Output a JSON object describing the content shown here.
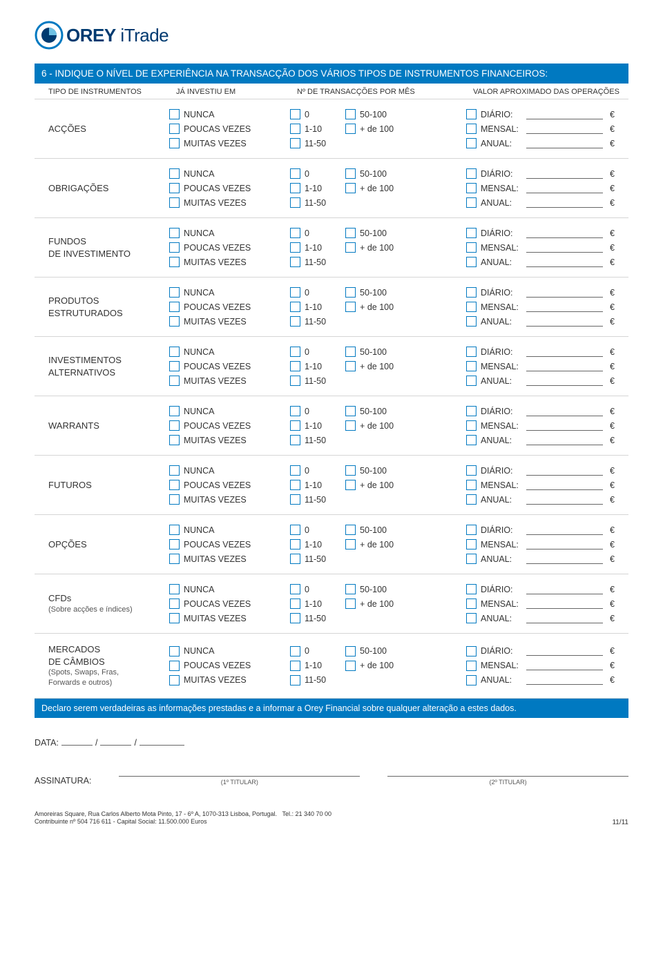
{
  "logo": {
    "brand_bold": "OREY",
    "brand_light": " iTrade"
  },
  "section_title": "6 - INDIQUE O NÍVEL DE EXPERIÊNCIA NA TRANSACÇÃO DOS VÁRIOS TIPOS DE INSTRUMENTOS FINANCEIROS:",
  "headers": {
    "tipo": "TIPO DE INSTRUMENTOS",
    "investiu": "JÁ INVESTIU EM",
    "transaccoes": "Nº DE TRANSACÇÕES POR MÊS",
    "valor": "VALOR APROXIMADO DAS OPERAÇÕES"
  },
  "investiu_opts": [
    "NUNCA",
    "POUCAS VEZES",
    "MUITAS VEZES"
  ],
  "trans_col1": [
    "0",
    "1-10",
    "11-50"
  ],
  "trans_col2": [
    "50-100",
    "+ de 100"
  ],
  "valor_labels": [
    "DIÁRIO:",
    "MENSAL:",
    "ANUAL:"
  ],
  "currency": "€",
  "instruments": [
    {
      "name": "ACÇÕES",
      "sub": ""
    },
    {
      "name": "OBRIGAÇÕES",
      "sub": ""
    },
    {
      "name": "FUNDOS\nDE INVESTIMENTO",
      "sub": ""
    },
    {
      "name": "PRODUTOS\nESTRUTURADOS",
      "sub": ""
    },
    {
      "name": "INVESTIMENTOS\nALTERNATIVOS",
      "sub": ""
    },
    {
      "name": "WARRANTS",
      "sub": ""
    },
    {
      "name": "FUTUROS",
      "sub": ""
    },
    {
      "name": "OPÇÕES",
      "sub": ""
    },
    {
      "name": "CFDs",
      "sub": "(Sobre acções e índices)"
    },
    {
      "name": "MERCADOS\nDE CÂMBIOS",
      "sub": "(Spots, Swaps, Fras,\nForwards e outros)"
    }
  ],
  "declaration": "Declaro serem verdadeiras as informações prestadas e a informar a Orey Financial sobre qualquer alteração a estes dados.",
  "data_label": "DATA:",
  "assinatura_label": "ASSINATURA:",
  "titular1": "(1º TITULAR)",
  "titular2": "(2º TITULAR)",
  "footer_address": "Amoreiras Square, Rua Carlos Alberto Mota Pinto, 17 - 6º A, 1070-313 Lisboa, Portugal.",
  "footer_tel": "Tel.: 21 340 70 00",
  "footer_line2": "Contribuinte nº 504 716 611 - Capital Social: 11.500.000 Euros",
  "page_num": "11/11",
  "colors": {
    "primary": "#0079c1",
    "brand_navy": "#003a70",
    "text": "#333333",
    "border": "#d5d5d5"
  }
}
